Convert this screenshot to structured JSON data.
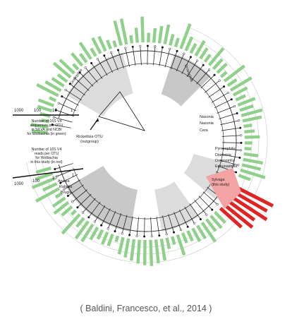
{
  "figure": {
    "legend_green": [
      "Number of 16S V4",
      "sequences per OTU",
      "in SILVA and NCBI",
      "for Wolbachia (in green)"
    ],
    "legend_red": [
      "Number of 16S V4",
      "reads per OTU",
      "for Wolbachia",
      "in this study (in red)"
    ],
    "scale_green": [
      "1000",
      "100",
      "10",
      "1"
    ],
    "scale_red": [
      "1000",
      "100",
      "10",
      "1"
    ],
    "outgroup_label": [
      "Rickettsia OTU",
      "(outgroup)"
    ],
    "highlight_label": [
      "Sylvaga",
      "(this study)"
    ],
    "clade_labels": [
      "Drosophila",
      "Nasonia",
      "Nasonia",
      "Cera",
      "Pyrosophila",
      "Diaolotria",
      "Dropontrilla",
      "Ephunastrilla",
      "Drosophila",
      "Apiotia",
      "Rabidia",
      "Brugia"
    ],
    "colors": {
      "green_bar": "#8fd08a",
      "red_bar": "#e02424",
      "highlight": "#f3a3a3",
      "clade_shade": "#d0d0d0",
      "clade_shade_dark": "#b5b5b5",
      "tree_line": "#111111"
    }
  },
  "caption": "( Baldini, Francesco, et al., 2014 )"
}
